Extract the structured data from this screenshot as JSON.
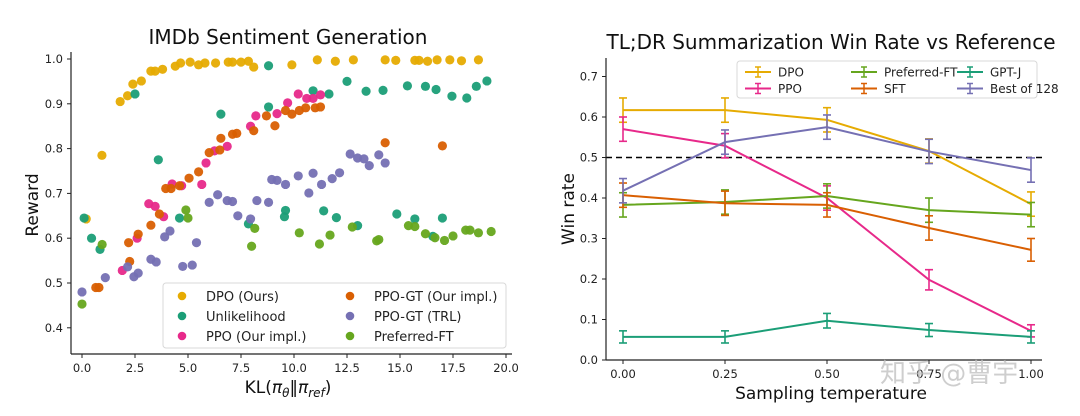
{
  "chart_data": [
    {
      "type": "scatter",
      "title": "IMDb Sentiment Generation",
      "xlabel": "KL(πθ‖πref)",
      "ylabel": "Reward",
      "xlim": [
        -0.5,
        20.5
      ],
      "ylim": [
        0.34,
        1.02
      ],
      "xticks": [
        "0.0",
        "2.5",
        "5.0",
        "7.5",
        "10.0",
        "12.5",
        "15.0",
        "17.5",
        "20.0"
      ],
      "xtick_values": [
        0,
        2.5,
        5,
        7.5,
        10,
        12.5,
        15,
        17.5,
        20
      ],
      "yticks": [
        "0.4",
        "0.5",
        "0.6",
        "0.7",
        "0.8",
        "0.9",
        "1.0"
      ],
      "ytick_values": [
        0.4,
        0.5,
        0.6,
        0.7,
        0.8,
        0.9,
        1.0
      ],
      "grid": false,
      "legend": "lower-right",
      "legend_columns": 2,
      "series": [
        {
          "name": "DPO (Ours)",
          "color": "#E6AB02",
          "points": [
            [
              0.2,
              0.643
            ],
            [
              0.94,
              0.785
            ],
            [
              1.8,
              0.905
            ],
            [
              2.15,
              0.918
            ],
            [
              2.4,
              0.944
            ],
            [
              2.8,
              0.951
            ],
            [
              3.25,
              0.973
            ],
            [
              3.45,
              0.973
            ],
            [
              3.8,
              0.977
            ],
            [
              4.4,
              0.984
            ],
            [
              4.65,
              0.991
            ],
            [
              5.1,
              0.993
            ],
            [
              5.5,
              0.987
            ],
            [
              5.8,
              0.991
            ],
            [
              6.3,
              0.991
            ],
            [
              6.9,
              0.993
            ],
            [
              7.1,
              0.993
            ],
            [
              7.5,
              0.993
            ],
            [
              7.85,
              0.995
            ],
            [
              8.1,
              0.982
            ],
            [
              9.9,
              0.987
            ],
            [
              11.1,
              0.998
            ],
            [
              11.95,
              0.995
            ],
            [
              12.8,
              0.998
            ],
            [
              14.3,
              0.998
            ],
            [
              14.8,
              0.997
            ],
            [
              15.7,
              0.997
            ],
            [
              15.9,
              0.997
            ],
            [
              16.3,
              0.995
            ],
            [
              16.75,
              0.998
            ],
            [
              17.35,
              0.998
            ],
            [
              17.9,
              0.996
            ],
            [
              18.7,
              0.998
            ]
          ]
        },
        {
          "name": "Unlikelihood",
          "color": "#1B9E77",
          "points": [
            [
              0.1,
              0.645
            ],
            [
              0.45,
              0.6
            ],
            [
              0.85,
              0.575
            ],
            [
              2.5,
              0.922
            ],
            [
              3.6,
              0.775
            ],
            [
              4.6,
              0.645
            ],
            [
              6.55,
              0.877
            ],
            [
              7.85,
              0.632
            ],
            [
              8.8,
              0.985
            ],
            [
              8.8,
              0.893
            ],
            [
              9.55,
              0.648
            ],
            [
              9.6,
              0.662
            ],
            [
              10.9,
              0.929
            ],
            [
              11.4,
              0.661
            ],
            [
              11.65,
              0.922
            ],
            [
              12.0,
              0.646
            ],
            [
              12.5,
              0.95
            ],
            [
              13.0,
              0.628
            ],
            [
              13.4,
              0.928
            ],
            [
              14.2,
              0.93
            ],
            [
              14.85,
              0.654
            ],
            [
              15.35,
              0.94
            ],
            [
              15.7,
              0.643
            ],
            [
              16.2,
              0.939
            ],
            [
              16.55,
              0.604
            ],
            [
              16.7,
              0.932
            ],
            [
              17.0,
              0.645
            ],
            [
              17.45,
              0.917
            ],
            [
              18.15,
              0.913
            ],
            [
              18.6,
              0.939
            ],
            [
              19.1,
              0.951
            ]
          ]
        },
        {
          "name": "PPO (Our impl.)",
          "color": "#E7298A",
          "points": [
            [
              1.9,
              0.528
            ],
            [
              2.6,
              0.6
            ],
            [
              3.15,
              0.677
            ],
            [
              3.45,
              0.671
            ],
            [
              3.85,
              0.648
            ],
            [
              4.25,
              0.721
            ],
            [
              4.7,
              0.717
            ],
            [
              5.65,
              0.72
            ],
            [
              5.85,
              0.768
            ],
            [
              6.25,
              0.795
            ],
            [
              6.85,
              0.805
            ],
            [
              7.95,
              0.85
            ],
            [
              8.2,
              0.873
            ],
            [
              9.2,
              0.878
            ],
            [
              9.7,
              0.902
            ],
            [
              10.2,
              0.922
            ],
            [
              10.6,
              0.912
            ],
            [
              10.9,
              0.912
            ],
            [
              11.25,
              0.92
            ]
          ]
        },
        {
          "name": "PPO-GT (Our impl.)",
          "color": "#D95F02",
          "points": [
            [
              0.65,
              0.49
            ],
            [
              0.8,
              0.49
            ],
            [
              2.2,
              0.59
            ],
            [
              2.25,
              0.548
            ],
            [
              2.65,
              0.609
            ],
            [
              3.25,
              0.629
            ],
            [
              3.65,
              0.654
            ],
            [
              3.95,
              0.711
            ],
            [
              4.2,
              0.711
            ],
            [
              4.6,
              0.717
            ],
            [
              5.05,
              0.734
            ],
            [
              5.5,
              0.748
            ],
            [
              6.0,
              0.791
            ],
            [
              6.5,
              0.797
            ],
            [
              6.55,
              0.823
            ],
            [
              7.1,
              0.832
            ],
            [
              7.3,
              0.834
            ],
            [
              8.1,
              0.84
            ],
            [
              8.7,
              0.873
            ],
            [
              9.1,
              0.851
            ],
            [
              9.6,
              0.885
            ],
            [
              9.9,
              0.877
            ],
            [
              10.25,
              0.885
            ],
            [
              10.55,
              0.891
            ],
            [
              11.0,
              0.891
            ],
            [
              11.25,
              0.893
            ],
            [
              14.3,
              0.813
            ],
            [
              17.0,
              0.806
            ]
          ]
        },
        {
          "name": "PPO-GT (TRL)",
          "color": "#7570B3",
          "points": [
            [
              0.0,
              0.48
            ],
            [
              1.1,
              0.512
            ],
            [
              2.15,
              0.536
            ],
            [
              2.45,
              0.514
            ],
            [
              2.65,
              0.522
            ],
            [
              3.25,
              0.553
            ],
            [
              3.5,
              0.547
            ],
            [
              3.9,
              0.603
            ],
            [
              4.15,
              0.616
            ],
            [
              4.75,
              0.537
            ],
            [
              5.2,
              0.54
            ],
            [
              5.4,
              0.59
            ],
            [
              6.0,
              0.68
            ],
            [
              6.4,
              0.697
            ],
            [
              6.85,
              0.684
            ],
            [
              7.1,
              0.682
            ],
            [
              7.35,
              0.65
            ],
            [
              7.95,
              0.643
            ],
            [
              8.25,
              0.684
            ],
            [
              8.8,
              0.68
            ],
            [
              8.95,
              0.731
            ],
            [
              9.2,
              0.729
            ],
            [
              9.6,
              0.72
            ],
            [
              10.2,
              0.739
            ],
            [
              10.7,
              0.701
            ],
            [
              10.9,
              0.745
            ],
            [
              11.3,
              0.72
            ],
            [
              11.8,
              0.733
            ],
            [
              12.15,
              0.746
            ],
            [
              12.65,
              0.788
            ],
            [
              13.0,
              0.779
            ],
            [
              13.3,
              0.777
            ],
            [
              13.55,
              0.762
            ],
            [
              14.0,
              0.786
            ],
            [
              14.3,
              0.768
            ]
          ]
        },
        {
          "name": "Preferred-FT",
          "color": "#66A61E",
          "points": [
            [
              0.0,
              0.453
            ],
            [
              0.95,
              0.586
            ],
            [
              4.9,
              0.663
            ],
            [
              5.0,
              0.645
            ],
            [
              8.0,
              0.582
            ],
            [
              8.15,
              0.622
            ],
            [
              10.25,
              0.612
            ],
            [
              11.2,
              0.587
            ],
            [
              11.7,
              0.607
            ],
            [
              12.75,
              0.625
            ],
            [
              13.9,
              0.594
            ],
            [
              14.0,
              0.597
            ],
            [
              15.4,
              0.628
            ],
            [
              15.7,
              0.626
            ],
            [
              16.2,
              0.61
            ],
            [
              16.65,
              0.601
            ],
            [
              17.1,
              0.595
            ],
            [
              17.5,
              0.605
            ],
            [
              18.1,
              0.618
            ],
            [
              18.3,
              0.618
            ],
            [
              18.7,
              0.612
            ],
            [
              19.3,
              0.615
            ]
          ]
        }
      ]
    },
    {
      "type": "line",
      "title": "TL;DR Summarization Win Rate vs Reference",
      "xlabel": "Sampling temperature",
      "ylabel": "Win rate",
      "xlim": [
        -0.04,
        1.04
      ],
      "ylim": [
        0.0,
        0.75
      ],
      "xticks": [
        "0.00",
        "0.25",
        "0.50",
        "0.75",
        "1.00"
      ],
      "xtick_values": [
        0.0,
        0.25,
        0.5,
        0.75,
        1.0
      ],
      "yticks": [
        "0.0",
        "0.1",
        "0.2",
        "0.3",
        "0.4",
        "0.5",
        "0.6",
        "0.7"
      ],
      "ytick_values": [
        0.0,
        0.1,
        0.2,
        0.3,
        0.4,
        0.5,
        0.6,
        0.7
      ],
      "grid": false,
      "reference_line": {
        "y": 0.5,
        "style": "dashed",
        "color": "#000000"
      },
      "legend": "top-right",
      "legend_columns": 3,
      "x": [
        0.0,
        0.25,
        0.5,
        0.75,
        1.0
      ],
      "series": [
        {
          "name": "DPO",
          "color": "#E6AB02",
          "values": [
            0.617,
            0.617,
            0.593,
            0.516,
            0.385
          ],
          "errors": [
            0.03,
            0.03,
            0.03,
            0.03,
            0.03
          ]
        },
        {
          "name": "PPO",
          "color": "#E7298A",
          "values": [
            0.57,
            0.529,
            0.4,
            0.198,
            0.072
          ],
          "errors": [
            0.03,
            0.03,
            0.03,
            0.025,
            0.015
          ]
        },
        {
          "name": "Preferred-FT",
          "color": "#66A61E",
          "values": [
            0.383,
            0.39,
            0.405,
            0.37,
            0.359
          ],
          "errors": [
            0.03,
            0.03,
            0.03,
            0.03,
            0.03
          ]
        },
        {
          "name": "SFT",
          "color": "#D95F02",
          "values": [
            0.407,
            0.387,
            0.383,
            0.326,
            0.272
          ],
          "errors": [
            0.03,
            0.03,
            0.03,
            0.03,
            0.028
          ]
        },
        {
          "name": "GPT-J",
          "color": "#1B9E77",
          "values": [
            0.057,
            0.057,
            0.097,
            0.074,
            0.057
          ],
          "errors": [
            0.015,
            0.015,
            0.018,
            0.016,
            0.015
          ]
        },
        {
          "name": "Best of 128",
          "color": "#7570B3",
          "values": [
            0.418,
            0.538,
            0.575,
            0.515,
            0.469
          ],
          "errors": [
            0.03,
            0.03,
            0.03,
            0.03,
            0.03
          ]
        }
      ]
    }
  ],
  "watermark": "知乎 @曹宇"
}
